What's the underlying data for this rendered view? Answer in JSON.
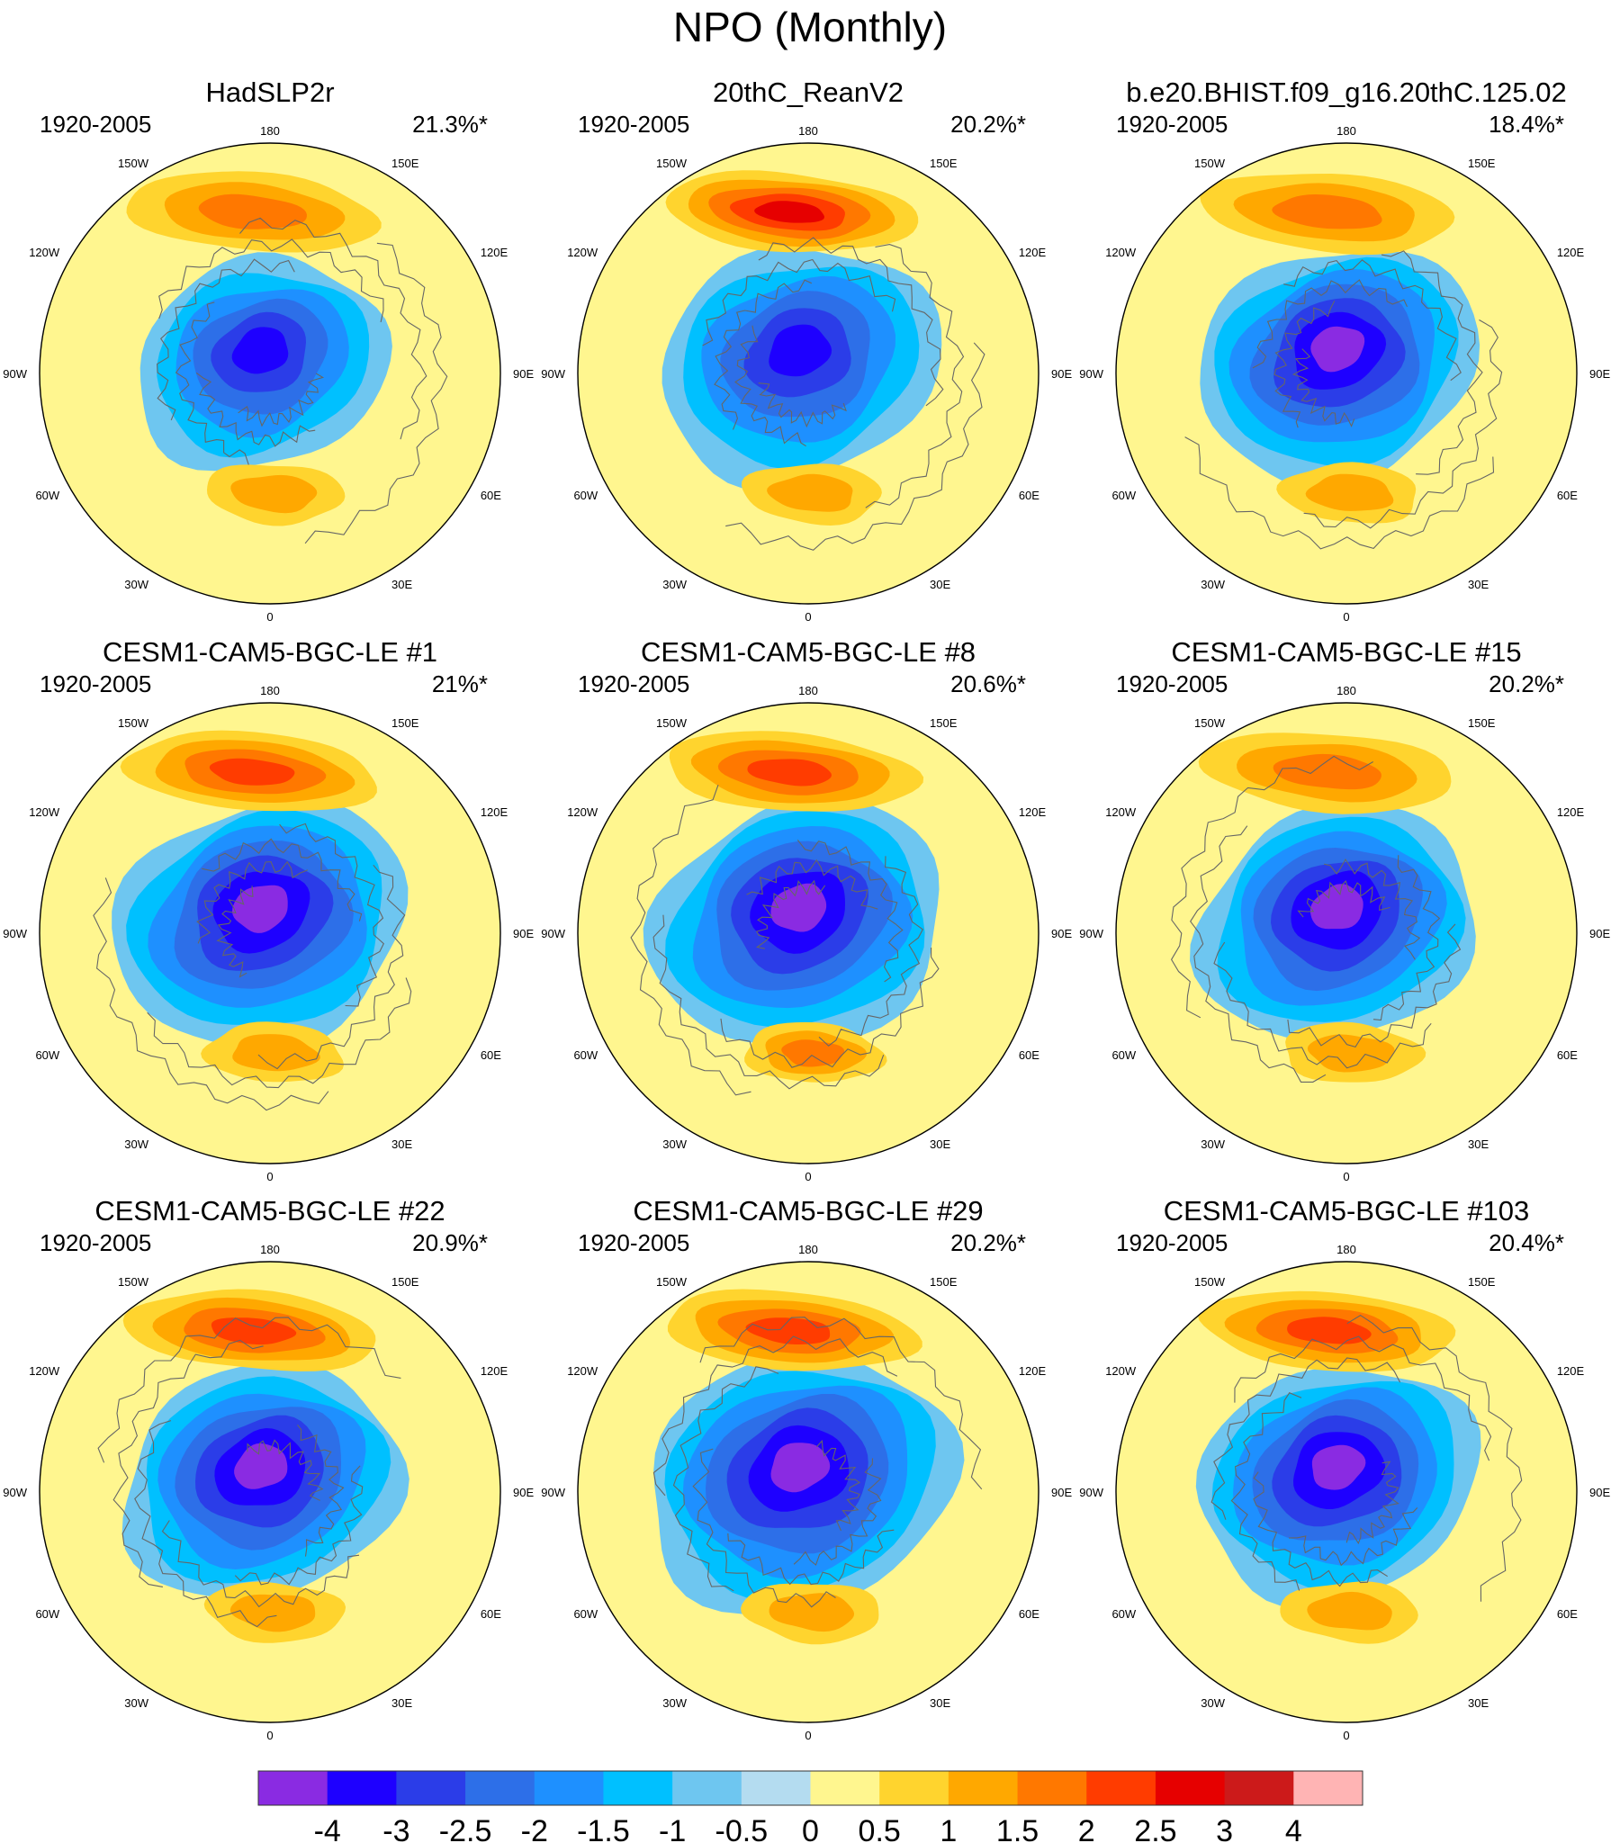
{
  "figure": {
    "title": "NPO (Monthly)"
  },
  "panels": [
    {
      "title": "HadSLP2r",
      "period": "1920-2005",
      "variance": "21.3%*",
      "high_max": 1.5,
      "low_min": -3,
      "low_extent": 0.9,
      "europe_high": 1
    },
    {
      "title": "20thC_ReanV2",
      "period": "1920-2005",
      "variance": "20.2%*",
      "high_max": 2.5,
      "low_min": -3,
      "low_extent": 1.0,
      "europe_high": 1
    },
    {
      "title": "b.e20.BHIST.f09_g16.20thC.125.02",
      "period": "1920-2005",
      "variance": "18.4%*",
      "high_max": 1.5,
      "low_min": -4,
      "low_extent": 1.0,
      "europe_high": 1
    },
    {
      "title": "CESM1-CAM5-BGC-LE #1",
      "period": "1920-2005",
      "variance": "21%*",
      "high_max": 2,
      "low_min": -4,
      "low_extent": 1.05,
      "europe_high": 1
    },
    {
      "title": "CESM1-CAM5-BGC-LE #8",
      "period": "1920-2005",
      "variance": "20.6%*",
      "high_max": 2,
      "low_min": -4,
      "low_extent": 1.05,
      "europe_high": 1.5
    },
    {
      "title": "CESM1-CAM5-BGC-LE #15",
      "period": "1920-2005",
      "variance": "20.2%*",
      "high_max": 1.5,
      "low_min": -4,
      "low_extent": 1.0,
      "europe_high": 1
    },
    {
      "title": "CESM1-CAM5-BGC-LE #22",
      "period": "1920-2005",
      "variance": "20.9%*",
      "high_max": 2,
      "low_min": -4,
      "low_extent": 1.0,
      "europe_high": 1
    },
    {
      "title": "CESM1-CAM5-BGC-LE #29",
      "period": "1920-2005",
      "variance": "20.2%*",
      "high_max": 2,
      "low_min": -4,
      "low_extent": 1.1,
      "europe_high": 1
    },
    {
      "title": "CESM1-CAM5-BGC-LE #103",
      "period": "1920-2005",
      "variance": "20.4%*",
      "high_max": 2,
      "low_min": -4,
      "low_extent": 1.0,
      "europe_high": 1
    }
  ],
  "longitude_labels": [
    "180",
    "150E",
    "120E",
    "90E",
    "60E",
    "30E",
    "0",
    "30W",
    "60W",
    "90W",
    "120W",
    "150W"
  ],
  "colorbar": {
    "tick_labels": [
      "-4",
      "-3",
      "-2.5",
      "-2",
      "-1.5",
      "-1",
      "-0.5",
      "0",
      "0.5",
      "1",
      "1.5",
      "2",
      "2.5",
      "3",
      "4"
    ],
    "colors": [
      "#8a2be2",
      "#1e00ff",
      "#2b3de8",
      "#2d6fe8",
      "#1e90ff",
      "#00c0ff",
      "#6ec6f0",
      "#b4dcf0",
      "#fff68f",
      "#ffd42e",
      "#ffa800",
      "#ff7800",
      "#ff3c00",
      "#e60000",
      "#cc1a1a",
      "#ffb4b4"
    ],
    "bins": [
      [
        -5,
        -4
      ],
      [
        -4,
        -3
      ],
      [
        -3,
        -2.5
      ],
      [
        -2.5,
        -2
      ],
      [
        -2,
        -1.5
      ],
      [
        -1.5,
        -1
      ],
      [
        -1,
        -0.5
      ],
      [
        -0.5,
        0
      ],
      [
        0,
        0.5
      ],
      [
        0.5,
        1
      ],
      [
        1,
        1.5
      ],
      [
        1.5,
        2
      ],
      [
        2,
        2.5
      ],
      [
        2.5,
        3
      ],
      [
        3,
        4
      ],
      [
        4,
        5
      ]
    ]
  }
}
